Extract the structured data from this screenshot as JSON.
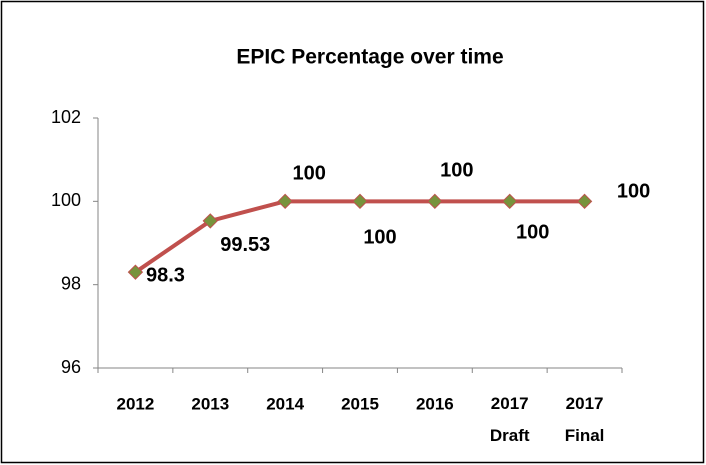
{
  "chart_data": {
    "type": "line",
    "title": "EPIC Percentage over time",
    "categories": [
      "2012",
      "2013",
      "2014",
      "2015",
      "2016",
      "2017 Draft",
      "2017 Final"
    ],
    "series": [
      {
        "name": "EPIC Percentage",
        "color": "#c0504d",
        "marker_color": "#77933c",
        "values": [
          98.3,
          99.53,
          100,
          100,
          100,
          100,
          100
        ]
      }
    ],
    "ylim": [
      96,
      102
    ],
    "yticks": [
      96,
      98,
      100,
      102
    ],
    "grid": false,
    "legend": false
  }
}
